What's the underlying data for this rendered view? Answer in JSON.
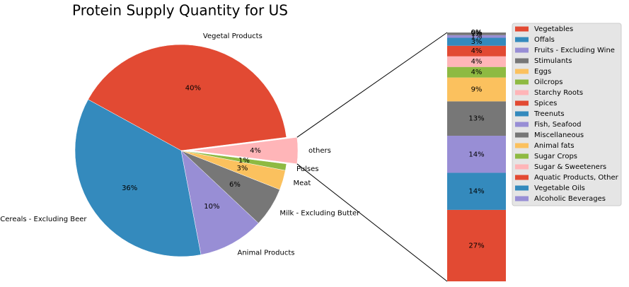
{
  "chart_data": [
    {
      "type": "pie",
      "title": "Protein Supply Quantity for US",
      "categories": [
        "others",
        "Vegetal Products",
        "Cereals - Excluding Beer",
        "Animal Products",
        "Milk - Excluding Butter",
        "Meat",
        "Pulses"
      ],
      "values": [
        4,
        40,
        36,
        10,
        6,
        3,
        1
      ],
      "value_labels": [
        "4%",
        "40%",
        "36%",
        "10%",
        "6%",
        "3%",
        "1%"
      ],
      "colors": [
        "#FFB5B8",
        "#E24A33",
        "#348ABD",
        "#988ED5",
        "#777777",
        "#FBC15E",
        "#8EBA42"
      ],
      "explode": [
        0.1,
        0,
        0,
        0,
        0,
        0,
        0
      ]
    },
    {
      "type": "bar",
      "stacked": true,
      "legend": "right",
      "categories": [
        "Vegetables",
        "Offals",
        "Fruits - Excluding Wine",
        "Stimulants",
        "Eggs",
        "Oilcrops",
        "Starchy Roots",
        "Spices",
        "Treenuts",
        "Fish, Seafood",
        "Miscellaneous",
        "Animal fats",
        "Sugar Crops",
        "Sugar & Sweeteners",
        "Aquatic Products, Other",
        "Vegetable Oils",
        "Alcoholic Beverages"
      ],
      "values": [
        27,
        14,
        14,
        13,
        9,
        4,
        4,
        4,
        3,
        1,
        1,
        0,
        0,
        0,
        0,
        0,
        0
      ],
      "value_labels": [
        "27%",
        "14%",
        "14%",
        "13%",
        "9%",
        "4%",
        "4%",
        "4%",
        "3%",
        "1%",
        "1%",
        "0%",
        "0%",
        "0%",
        "0%",
        "0%",
        "0%"
      ],
      "colors": [
        "#E24A33",
        "#348ABD",
        "#988ED5",
        "#777777",
        "#FBC15E",
        "#8EBA42",
        "#FFB5B8",
        "#E24A33",
        "#348ABD",
        "#988ED5",
        "#777777",
        "#FBC15E",
        "#8EBA42",
        "#FFB5B8",
        "#E24A33",
        "#348ABD",
        "#988ED5"
      ]
    }
  ]
}
